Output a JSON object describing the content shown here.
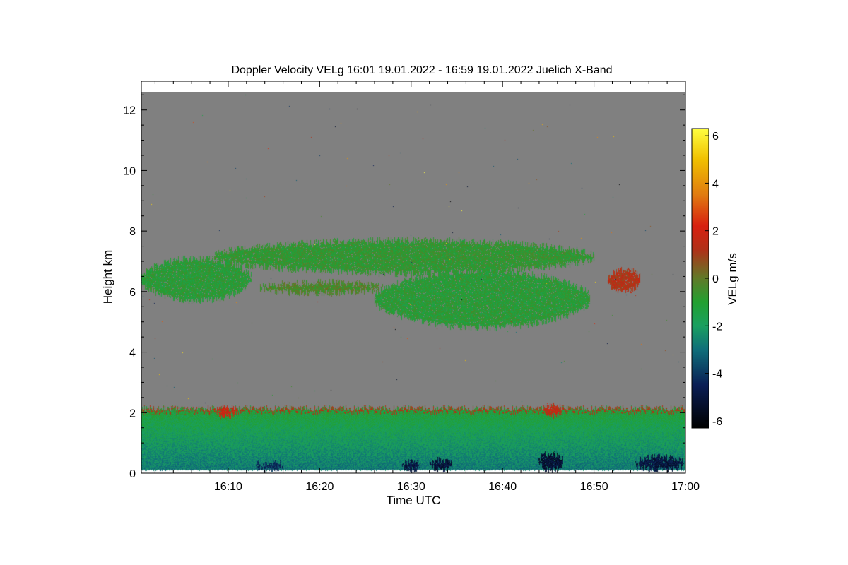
{
  "chart_data": {
    "type": "heatmap",
    "title": "Doppler Velocity VELg   16:01 19.01.2022 - 16:59 19.01.2022 Juelich X-Band",
    "xlabel": "Time UTC",
    "ylabel": "Height km",
    "colorbar_label": "VELg m/s",
    "x_range_minutes": [
      0.5,
      60
    ],
    "x_ticks": [
      {
        "minute": 10,
        "label": "16:10"
      },
      {
        "minute": 20,
        "label": "16:20"
      },
      {
        "minute": 30,
        "label": "16:30"
      },
      {
        "minute": 40,
        "label": "16:40"
      },
      {
        "minute": 50,
        "label": "16:50"
      },
      {
        "minute": 60,
        "label": "17:00"
      }
    ],
    "ylim": [
      0,
      12.95
    ],
    "y_ticks": [
      {
        "value": 0,
        "label": "0"
      },
      {
        "value": 2,
        "label": "2"
      },
      {
        "value": 4,
        "label": "4"
      },
      {
        "value": 6,
        "label": "6"
      },
      {
        "value": 8,
        "label": "8"
      },
      {
        "value": 10,
        "label": "10"
      },
      {
        "value": 12,
        "label": "12"
      }
    ],
    "data_top_km": 12.6,
    "colorbar_range": [
      -6.3,
      6.3
    ],
    "colorbar_ticks": [
      {
        "value": 6,
        "label": "6"
      },
      {
        "value": 4,
        "label": "4"
      },
      {
        "value": 2,
        "label": "2"
      },
      {
        "value": 0,
        "label": "0"
      },
      {
        "value": -2,
        "label": "-2"
      },
      {
        "value": -4,
        "label": "-4"
      },
      {
        "value": -6,
        "label": "-6"
      }
    ],
    "colormap": [
      {
        "v": -6.3,
        "color": "#000000"
      },
      {
        "v": -4.5,
        "color": "#0a1e55"
      },
      {
        "v": -3.0,
        "color": "#0f6e7a"
      },
      {
        "v": -2.0,
        "color": "#1aa060"
      },
      {
        "v": -1.0,
        "color": "#22a030"
      },
      {
        "v": 0.0,
        "color": "#607a28"
      },
      {
        "v": 1.2,
        "color": "#b03018"
      },
      {
        "v": 2.2,
        "color": "#d82010"
      },
      {
        "v": 3.5,
        "color": "#e07a10"
      },
      {
        "v": 5.0,
        "color": "#f0c000"
      },
      {
        "v": 6.3,
        "color": "#ffff40"
      }
    ],
    "no_data_color": "#808080",
    "echo_regions": [
      {
        "name": "boundary-layer",
        "x_start": 0.5,
        "x_end": 60,
        "h_min": 0.1,
        "h_max": 2.15,
        "velocity": -1.5
      },
      {
        "name": "boundary-layer-top-updraft",
        "x_start": 8.5,
        "x_end": 11,
        "h_min": 1.9,
        "h_max": 2.15,
        "velocity": 1.8
      },
      {
        "name": "boundary-layer-top-updraft",
        "x_start": 44.5,
        "x_end": 46.5,
        "h_min": 1.9,
        "h_max": 2.25,
        "velocity": 1.6
      },
      {
        "name": "near-surface-downdraft",
        "x_start": 13,
        "x_end": 16,
        "h_min": 0.1,
        "h_max": 0.35,
        "velocity": -4.2
      },
      {
        "name": "near-surface-downdraft",
        "x_start": 29,
        "x_end": 31,
        "h_min": 0.1,
        "h_max": 0.4,
        "velocity": -4.8
      },
      {
        "name": "near-surface-downdraft",
        "x_start": 32,
        "x_end": 34.5,
        "h_min": 0.1,
        "h_max": 0.45,
        "velocity": -5.0
      },
      {
        "name": "near-surface-downdraft",
        "x_start": 44,
        "x_end": 46.5,
        "h_min": 0.1,
        "h_max": 0.65,
        "velocity": -5.2
      },
      {
        "name": "near-surface-downdraft",
        "x_start": 54.5,
        "x_end": 60,
        "h_min": 0.1,
        "h_max": 0.55,
        "velocity": -4.9
      },
      {
        "name": "upper-cloud-left",
        "x_start": 0.5,
        "x_end": 12.5,
        "h_min": 5.7,
        "h_max": 7.1,
        "velocity": -1.0
      },
      {
        "name": "upper-cloud-band",
        "x_start": 8.5,
        "x_end": 50,
        "h_min": 6.6,
        "h_max": 7.7,
        "velocity": -0.8
      },
      {
        "name": "upper-cloud-thin-layer",
        "x_start": 13.5,
        "x_end": 27,
        "h_min": 5.95,
        "h_max": 6.3,
        "velocity": -0.3
      },
      {
        "name": "upper-cloud-main",
        "x_start": 26,
        "x_end": 49.5,
        "h_min": 4.8,
        "h_max": 6.7,
        "velocity": -1.0
      },
      {
        "name": "upper-cloud-updraft-cell",
        "x_start": 51.5,
        "x_end": 55,
        "h_min": 6.0,
        "h_max": 6.75,
        "velocity": 1.3
      }
    ]
  }
}
